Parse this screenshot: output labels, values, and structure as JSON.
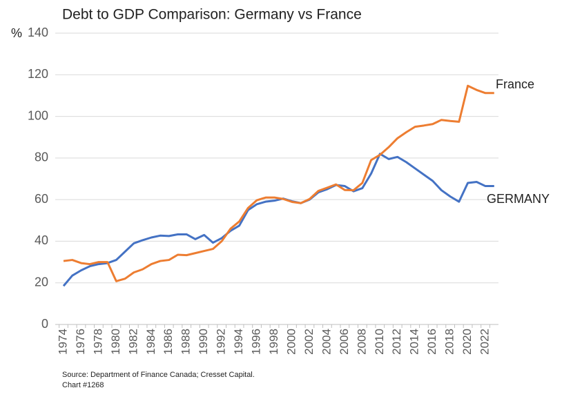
{
  "chart_data": {
    "type": "line",
    "title": "Debt to GDP Comparison: Germany vs France",
    "y_label": "%",
    "categories": [
      "1974",
      null,
      "1976",
      null,
      "1978",
      null,
      "1980",
      null,
      "1982",
      null,
      "1984",
      null,
      "1986",
      null,
      "1988",
      null,
      "1990",
      null,
      "1992",
      null,
      "1994",
      null,
      "1996",
      null,
      "1998",
      null,
      "2000",
      null,
      "2002",
      null,
      "2004",
      null,
      "2006",
      null,
      "2008",
      null,
      "2010",
      null,
      "2012",
      null,
      "2014",
      null,
      "2016",
      null,
      "2018",
      null,
      "2020",
      null,
      "2022",
      null
    ],
    "series": [
      {
        "name": "GERMANY",
        "color": "#4472c4",
        "values": [
          18.5,
          23.5,
          26,
          28,
          29,
          29.5,
          31,
          35,
          39,
          40.5,
          41.8,
          42.7,
          42.5,
          43.3,
          43.3,
          41,
          43,
          39.3,
          41.5,
          45,
          47.5,
          55,
          57.8,
          59,
          59.5,
          60.5,
          59.2,
          58.3,
          60,
          63.5,
          65,
          67,
          66.5,
          64,
          65.5,
          72.5,
          82,
          79.5,
          80.5,
          78,
          75,
          72,
          69,
          64.5,
          61.5,
          59,
          68,
          68.5,
          66.5,
          66.5
        ]
      },
      {
        "name": "France",
        "color": "#ed7d31",
        "values": [
          30.5,
          31,
          29.5,
          29,
          30,
          30,
          20.8,
          22,
          25,
          26.5,
          29,
          30.5,
          31,
          33.5,
          33.3,
          34.3,
          35.3,
          36.3,
          40,
          46,
          49.5,
          56,
          59.7,
          61,
          61,
          60.3,
          58.9,
          58.3,
          60.3,
          64.2,
          65.7,
          67.3,
          64.6,
          64.5,
          68,
          79,
          81.5,
          85.2,
          89.5,
          92.4,
          95,
          95.6,
          96.3,
          98.3,
          97.8,
          97.4,
          114.7,
          112.7,
          111.2,
          111.2
        ]
      }
    ],
    "ylim": [
      0,
      140
    ],
    "yticks": [
      0,
      20,
      40,
      60,
      80,
      100,
      120,
      140
    ],
    "grid": true,
    "source": [
      "Source: Department of Finance Canada; Cresset Capital.",
      "Chart #1268"
    ]
  }
}
